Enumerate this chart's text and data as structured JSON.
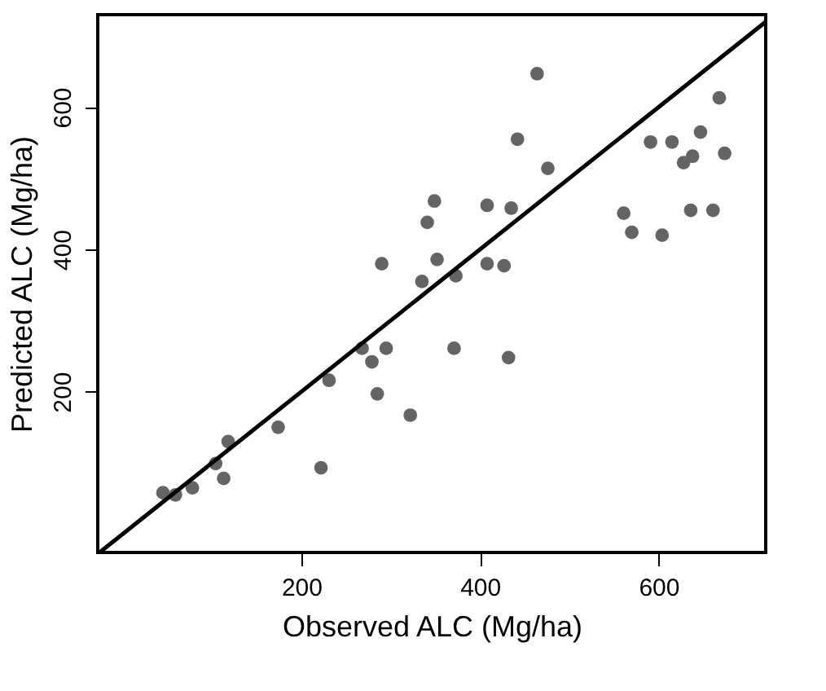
{
  "chart_data": {
    "type": "scatter",
    "xlabel": "Observed ALC (Mg/ha)",
    "ylabel": "Predicted ALC (Mg/ha)",
    "xlim": [
      -28,
      720
    ],
    "ylim": [
      -26,
      730
    ],
    "xticks": [
      200,
      400,
      600
    ],
    "yticks": [
      200,
      400,
      600
    ],
    "grid": false,
    "marker": "circle",
    "series": [
      {
        "color": "#646464",
        "x": [
          464,
          668,
          442,
          591,
          615,
          647,
          638,
          628,
          674,
          476,
          349,
          341,
          408,
          435,
          561,
          570,
          604,
          636,
          661,
          290,
          352,
          335,
          373,
          408,
          427,
          268,
          295,
          371,
          432,
          279,
          231,
          285,
          322,
          174,
          118,
          104,
          113,
          222,
          45,
          59,
          78
        ],
        "values": [
          647,
          613,
          555,
          551,
          551,
          565,
          531,
          522,
          535,
          514,
          468,
          438,
          462,
          458,
          451,
          424,
          420,
          455,
          455,
          380,
          386,
          355,
          363,
          380,
          377,
          261,
          261,
          261,
          248,
          242,
          216,
          197,
          167,
          150,
          130,
          99,
          78,
          93,
          58,
          55,
          65
        ]
      },
      {
        "type": "line",
        "marker": "none",
        "line_style": "solid",
        "color": "#000000",
        "x": [
          -26,
          720
        ],
        "values": [
          -26,
          720
        ]
      }
    ]
  }
}
